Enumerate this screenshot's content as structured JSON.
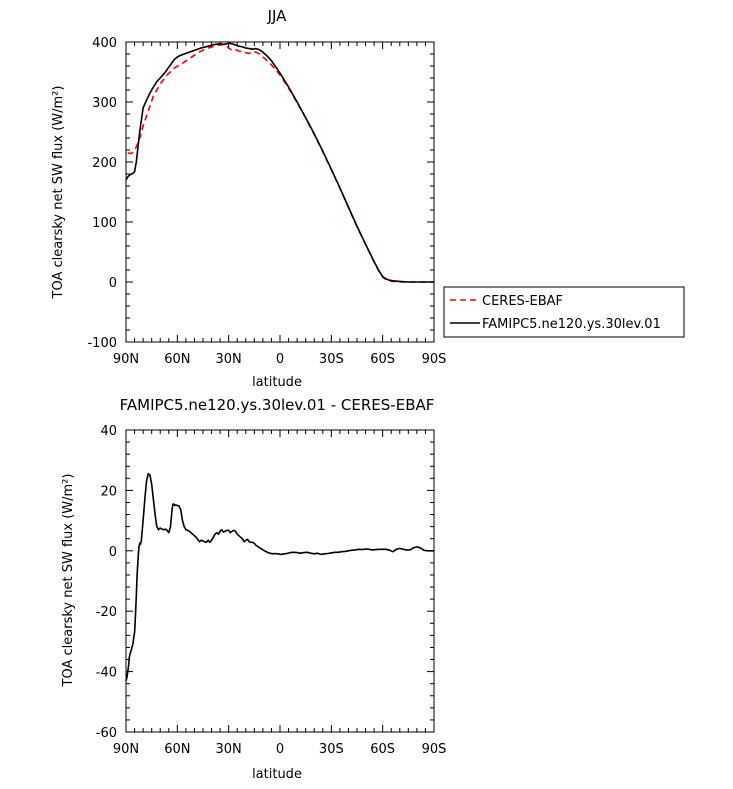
{
  "chart_data": [
    {
      "type": "line",
      "title": "JJA",
      "xlabel": "latitude",
      "ylabel": "TOA clearsky net SW flux (W/m²)",
      "xlim": [
        90,
        -90
      ],
      "ylim": [
        -100,
        400
      ],
      "x_tick_values": [
        90,
        60,
        30,
        0,
        -30,
        -60,
        -90
      ],
      "x_tick_labels": [
        "90N",
        "60N",
        "30N",
        "0",
        "30S",
        "60S",
        "90S"
      ],
      "y_tick_values": [
        -100,
        0,
        100,
        200,
        300,
        400
      ],
      "y_tick_labels": [
        "-100",
        "0",
        "100",
        "200",
        "300",
        "400"
      ],
      "legend": "outside-right",
      "series": [
        {
          "name": "CERES-EBAF",
          "color": "#ff0000",
          "dash": "dashed",
          "x": [
            89,
            87,
            86,
            84,
            82,
            80,
            77,
            74,
            70,
            66,
            62,
            58,
            54,
            50,
            46,
            42,
            38,
            36,
            34,
            32,
            30,
            28,
            26,
            24,
            22,
            20,
            18,
            16,
            14,
            12,
            10,
            8,
            5,
            0,
            -5,
            -10,
            -15,
            -20,
            -25,
            -30,
            -35,
            -40,
            -45,
            -50,
            -55,
            -58,
            -60,
            -62,
            -64,
            -66,
            -70,
            -75,
            -80,
            -85,
            -90
          ],
          "y": [
            215,
            214,
            216,
            225,
            240,
            260,
            285,
            310,
            330,
            345,
            356,
            363,
            370,
            378,
            385,
            390,
            393,
            395,
            396,
            395,
            390,
            386,
            387,
            385,
            384,
            382,
            381,
            384,
            383,
            380,
            375,
            370,
            362,
            345,
            323,
            299,
            273,
            246,
            217,
            187,
            156,
            124,
            92,
            62,
            33,
            17,
            8,
            4,
            2,
            1,
            0,
            0,
            0,
            0,
            0
          ]
        },
        {
          "name": "FAMIPC5.ne120.ys.30lev.01",
          "color": "#000000",
          "dash": "solid",
          "x": [
            90,
            89,
            88,
            86,
            85,
            84,
            82,
            80,
            78,
            76,
            74,
            72,
            70,
            67,
            64,
            62,
            60,
            58,
            56,
            54,
            50,
            46,
            42,
            38,
            35,
            33,
            31,
            30,
            28,
            26,
            24,
            22,
            20,
            18,
            16,
            14,
            12,
            10,
            8,
            5,
            0,
            -5,
            -10,
            -15,
            -20,
            -25,
            -30,
            -35,
            -40,
            -45,
            -50,
            -55,
            -58,
            -60,
            -62,
            -64,
            -66,
            -70,
            -75,
            -80,
            -85,
            -90
          ],
          "y": [
            170,
            175,
            178,
            181,
            184,
            200,
            250,
            290,
            303,
            315,
            325,
            334,
            340,
            350,
            362,
            370,
            375,
            378,
            380,
            382,
            386,
            390,
            393,
            396,
            397,
            396,
            397,
            398,
            397,
            395,
            393,
            392,
            390,
            389,
            388,
            389,
            387,
            383,
            378,
            369,
            348,
            325,
            300,
            274,
            247,
            218,
            188,
            157,
            125,
            93,
            63,
            34,
            18,
            9,
            5,
            3,
            2,
            1,
            0,
            0,
            0,
            0
          ]
        }
      ]
    },
    {
      "type": "line",
      "title": "FAMIPC5.ne120.ys.30lev.01 - CERES-EBAF",
      "xlabel": "latitude",
      "ylabel": "TOA clearsky net SW flux (W/m²)",
      "xlim": [
        90,
        -90
      ],
      "ylim": [
        -60,
        40
      ],
      "x_tick_values": [
        90,
        60,
        30,
        0,
        -30,
        -60,
        -90
      ],
      "x_tick_labels": [
        "90N",
        "60N",
        "30N",
        "0",
        "30S",
        "60S",
        "90S"
      ],
      "y_tick_values": [
        -60,
        -40,
        -20,
        0,
        20,
        40
      ],
      "y_tick_labels": [
        "-60",
        "-40",
        "-20",
        "0",
        "20",
        "40"
      ],
      "series": [
        {
          "color": "#000000",
          "dash": "solid",
          "x": [
            90,
            89.5,
            88.5,
            88,
            87,
            86.5,
            86,
            85.5,
            85,
            84.5,
            84,
            83.5,
            83,
            82.5,
            82,
            81.5,
            81,
            80.5,
            80,
            79,
            78,
            77,
            76,
            75,
            74,
            73,
            72,
            71,
            70,
            69,
            68,
            67,
            66,
            65,
            64,
            63.5,
            63,
            62.5,
            62,
            61.5,
            61,
            60,
            59,
            58,
            57,
            56,
            55,
            54,
            53,
            52,
            51,
            50,
            49,
            48,
            47,
            46,
            45,
            44,
            43,
            42,
            41,
            40,
            39,
            38,
            37,
            36,
            35,
            34,
            33,
            32,
            31,
            30,
            29,
            28,
            27,
            26,
            25,
            24,
            23,
            22,
            21,
            20,
            19,
            18,
            17,
            16,
            15,
            14,
            13,
            12,
            11,
            10,
            9,
            8,
            7,
            6,
            5,
            4,
            3,
            2,
            1,
            0,
            -2,
            -4,
            -6,
            -8,
            -10,
            -12,
            -14,
            -16,
            -18,
            -20,
            -22,
            -24,
            -26,
            -28,
            -30,
            -32,
            -34,
            -36,
            -38,
            -40,
            -42,
            -44,
            -46,
            -48,
            -50,
            -52,
            -54,
            -56,
            -58,
            -60,
            -62,
            -64,
            -66,
            -68,
            -70,
            -72,
            -74,
            -76,
            -78,
            -80,
            -82,
            -84,
            -86,
            -88,
            -90
          ],
          "y": [
            -43,
            -42,
            -38,
            -35,
            -33,
            -32,
            -31,
            -29,
            -27,
            -22,
            -15,
            -8,
            -3,
            1,
            2.5,
            2.2,
            3.5,
            7,
            10,
            17,
            23,
            25.5,
            25,
            22,
            17,
            12,
            8,
            7,
            7.5,
            7.2,
            7,
            7.2,
            6.8,
            6,
            8,
            11,
            14,
            15.5,
            15.5,
            15,
            15.2,
            15,
            14.8,
            13.5,
            10,
            8,
            7,
            6.8,
            6.5,
            6,
            5.5,
            5,
            4.5,
            3.7,
            3,
            3.5,
            3.2,
            3,
            2.8,
            3.5,
            2.8,
            3.5,
            4.5,
            5.5,
            6,
            5.5,
            6.5,
            7,
            6.2,
            6.5,
            6.8,
            6.8,
            6,
            6.5,
            6.8,
            6.5,
            5.5,
            5,
            4.5,
            4,
            3,
            3.5,
            3.8,
            3,
            2.8,
            2.8,
            2.5,
            1.8,
            1.5,
            1,
            0.7,
            0.3,
            0,
            -0.3,
            -0.6,
            -0.8,
            -0.9,
            -1,
            -0.9,
            -1,
            -1,
            -1.2,
            -1.1,
            -0.9,
            -0.6,
            -0.5,
            -0.6,
            -0.8,
            -0.6,
            -0.5,
            -0.8,
            -1,
            -0.8,
            -1.2,
            -1,
            -0.9,
            -0.7,
            -0.5,
            -0.5,
            -0.3,
            -0.2,
            0,
            0.2,
            0.3,
            0.5,
            0.4,
            0.6,
            0.5,
            0.3,
            0.4,
            0.5,
            0.5,
            0.5,
            0.2,
            -0.3,
            0.5,
            0.8,
            0.5,
            0.3,
            0.3,
            1,
            1.3,
            1,
            0.2,
            0,
            0,
            0
          ]
        }
      ]
    }
  ]
}
